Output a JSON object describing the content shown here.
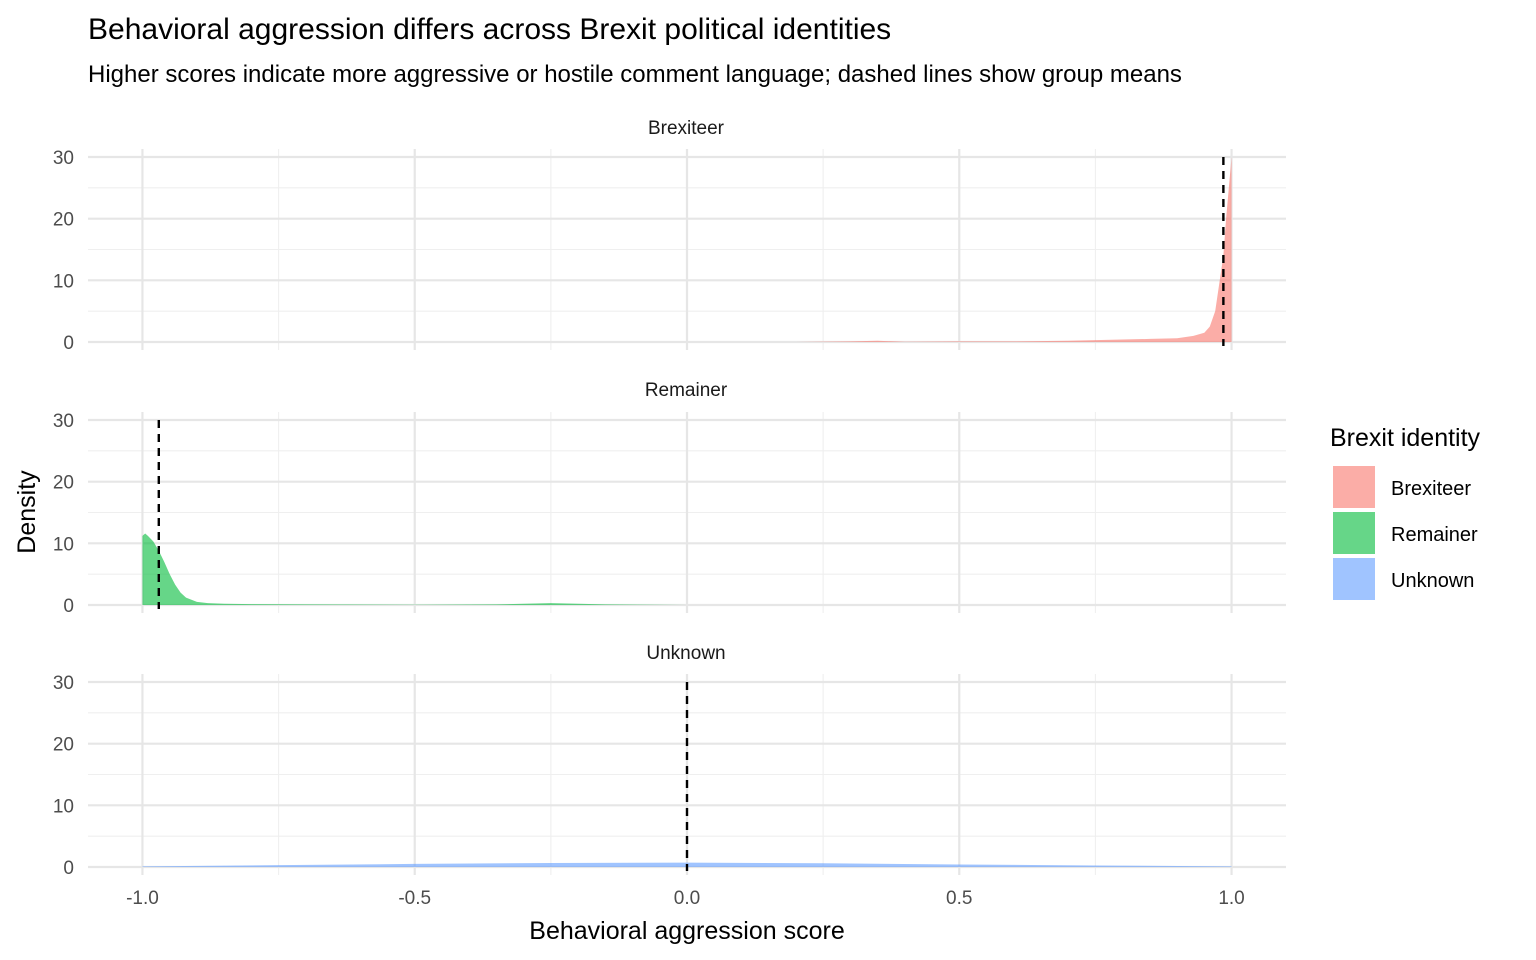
{
  "chart_data": {
    "type": "area",
    "title": "Behavioral aggression differs across Brexit political identities",
    "subtitle": "Higher scores indicate more aggressive or hostile comment language; dashed lines show group means",
    "xlabel": "Behavioral aggression score",
    "ylabel": "Density",
    "xlim": [
      -1.1,
      1.1
    ],
    "ylim": [
      0,
      30
    ],
    "x_ticks": [
      -1.0,
      -0.5,
      0.0,
      0.5,
      1.0
    ],
    "x_tick_labels": [
      "-1.0",
      "-0.5",
      "0.0",
      "0.5",
      "1.0"
    ],
    "y_ticks": [
      0,
      10,
      20,
      30
    ],
    "y_tick_labels": [
      "0",
      "10",
      "20",
      "30"
    ],
    "grid": true,
    "legend": {
      "title": "Brexit identity",
      "position": "right",
      "entries": [
        "Brexiteer",
        "Remainer",
        "Unknown"
      ]
    },
    "colors": {
      "Brexiteer": "#F8766D",
      "Remainer": "#00BA38",
      "Unknown": "#619CFF"
    },
    "series": [
      {
        "name": "Brexiteer",
        "mean": 0.985,
        "x": [
          -1.0,
          0.2,
          0.3,
          0.35,
          0.4,
          0.5,
          0.6,
          0.7,
          0.75,
          0.8,
          0.85,
          0.9,
          0.93,
          0.95,
          0.96,
          0.97,
          0.975,
          0.98,
          0.985,
          0.99,
          0.995,
          1.0
        ],
        "y": [
          0,
          0,
          0.1,
          0.2,
          0.05,
          0.1,
          0.1,
          0.2,
          0.3,
          0.4,
          0.5,
          0.6,
          1.0,
          1.5,
          2.5,
          5,
          8,
          11,
          14,
          20,
          25,
          30
        ]
      },
      {
        "name": "Remainer",
        "mean": -0.97,
        "x": [
          -1.0,
          -0.995,
          -0.99,
          -0.98,
          -0.97,
          -0.96,
          -0.95,
          -0.94,
          -0.93,
          -0.92,
          -0.9,
          -0.88,
          -0.85,
          -0.8,
          -0.7,
          -0.5,
          -0.35,
          -0.25,
          -0.15,
          0.0,
          1.0
        ],
        "y": [
          11.2,
          11.6,
          11.2,
          10.3,
          8.8,
          7.0,
          5.0,
          3.3,
          2.0,
          1.2,
          0.5,
          0.3,
          0.2,
          0.15,
          0.1,
          0.05,
          0.1,
          0.3,
          0.1,
          0,
          0
        ]
      },
      {
        "name": "Unknown",
        "mean": 0.0,
        "x": [
          -1.0,
          -0.75,
          -0.5,
          -0.25,
          0.0,
          0.25,
          0.5,
          0.75,
          1.0
        ],
        "y": [
          0.1,
          0.3,
          0.5,
          0.65,
          0.7,
          0.6,
          0.4,
          0.25,
          0.1
        ]
      }
    ]
  }
}
